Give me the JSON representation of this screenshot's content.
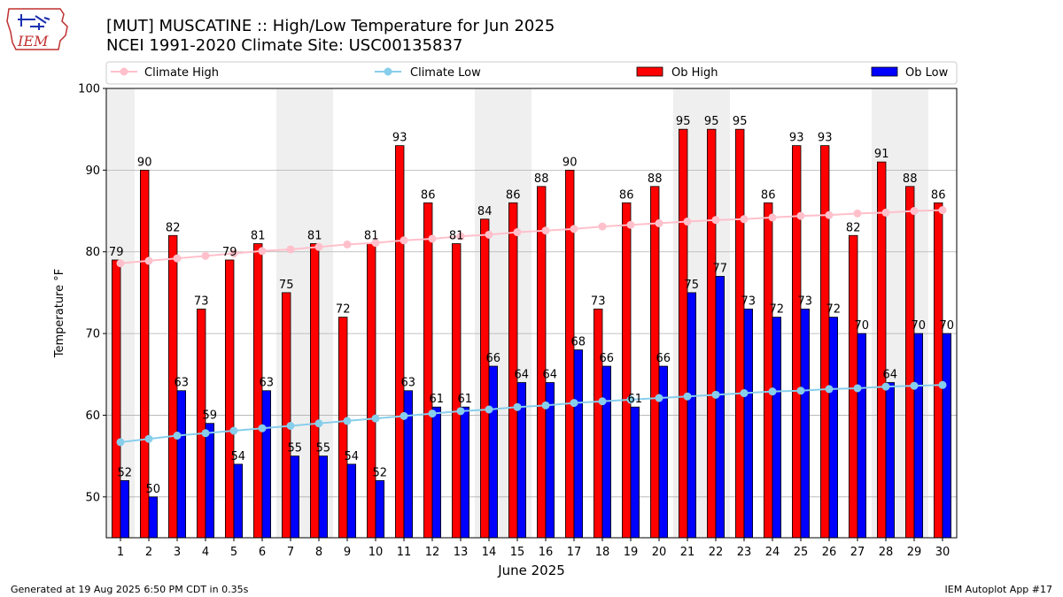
{
  "header": {
    "title": "[MUT] MUSCATINE :: High/Low Temperature for Jun 2025",
    "subtitle": "NCEI 1991-2020 Climate Site: USC00135837",
    "logo_text": "IEM"
  },
  "footer": {
    "left": "Generated at 19 Aug 2025 6:50 PM CDT in 0.35s",
    "right": "IEM Autoplot App #17"
  },
  "colors": {
    "ob_high": "#ff0000",
    "ob_low": "#0000ff",
    "climate_high": "#ffc0cb",
    "climate_low": "#87ceeb",
    "weekend_shade": "#efefef",
    "grid": "#b0b0b0"
  },
  "chart_data": {
    "type": "bar",
    "xlabel": "June 2025",
    "ylabel": "Temperature °F",
    "ylim": [
      45,
      100
    ],
    "yticks": [
      50,
      60,
      70,
      80,
      90,
      100
    ],
    "grid": true,
    "legend_position": "top",
    "categories": [
      "1",
      "2",
      "3",
      "4",
      "5",
      "6",
      "7",
      "8",
      "9",
      "10",
      "11",
      "12",
      "13",
      "14",
      "15",
      "16",
      "17",
      "18",
      "19",
      "20",
      "21",
      "22",
      "23",
      "24",
      "25",
      "26",
      "27",
      "28",
      "29",
      "30"
    ],
    "weekend_days": [
      1,
      7,
      8,
      14,
      15,
      21,
      22,
      28,
      29
    ],
    "series": [
      {
        "name": "Ob High",
        "kind": "bar",
        "values": [
          79,
          90,
          82,
          73,
          79,
          81,
          75,
          81,
          72,
          81,
          93,
          86,
          81,
          84,
          86,
          88,
          90,
          73,
          86,
          88,
          95,
          95,
          95,
          86,
          93,
          93,
          82,
          91,
          88,
          86
        ]
      },
      {
        "name": "Ob Low",
        "kind": "bar",
        "values": [
          52,
          50,
          63,
          59,
          54,
          63,
          55,
          55,
          54,
          52,
          63,
          61,
          61,
          66,
          64,
          64,
          68,
          66,
          61,
          66,
          75,
          77,
          73,
          72,
          73,
          72,
          70,
          64,
          70,
          70
        ]
      },
      {
        "name": "Climate High",
        "kind": "line",
        "values": [
          78.6,
          78.9,
          79.2,
          79.5,
          79.8,
          80.1,
          80.3,
          80.6,
          80.9,
          81.1,
          81.4,
          81.6,
          81.9,
          82.1,
          82.4,
          82.6,
          82.8,
          83.1,
          83.3,
          83.5,
          83.7,
          83.9,
          84.0,
          84.2,
          84.4,
          84.5,
          84.7,
          84.8,
          85.0,
          85.1
        ]
      },
      {
        "name": "Climate Low",
        "kind": "line",
        "values": [
          56.7,
          57.1,
          57.5,
          57.8,
          58.1,
          58.4,
          58.7,
          59.0,
          59.3,
          59.6,
          59.9,
          60.2,
          60.5,
          60.7,
          61.0,
          61.2,
          61.5,
          61.7,
          61.9,
          62.1,
          62.3,
          62.5,
          62.7,
          62.9,
          63.0,
          63.2,
          63.3,
          63.5,
          63.6,
          63.7
        ]
      }
    ],
    "legend": [
      "Climate High",
      "Climate Low",
      "Ob High",
      "Ob Low"
    ]
  }
}
